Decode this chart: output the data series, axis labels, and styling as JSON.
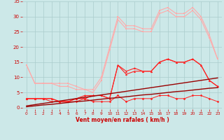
{
  "x": [
    0,
    1,
    2,
    3,
    4,
    5,
    6,
    7,
    8,
    9,
    10,
    11,
    12,
    13,
    14,
    15,
    16,
    17,
    18,
    19,
    20,
    21,
    22,
    23
  ],
  "light_max_y": [
    14,
    8,
    8,
    8,
    8,
    8,
    7,
    6,
    6,
    10,
    20,
    30,
    27,
    27,
    26,
    26,
    32,
    33,
    31,
    31,
    33,
    30,
    24,
    16
  ],
  "light_avg_y": [
    14,
    8,
    8,
    8,
    7,
    7,
    6,
    6,
    5,
    9,
    19,
    29,
    26,
    26,
    25,
    25,
    31,
    32,
    30,
    30,
    32,
    29,
    23,
    16
  ],
  "dark_max_y": [
    3,
    3,
    3,
    3,
    2,
    2,
    3,
    4,
    4,
    4,
    3,
    14,
    12,
    13,
    12,
    12,
    15,
    16,
    15,
    15,
    16,
    14,
    9,
    7
  ],
  "dark_avg_y": [
    3,
    3,
    3,
    3,
    2,
    2,
    3,
    3,
    4,
    4,
    3,
    14,
    11,
    12,
    12,
    12,
    15,
    16,
    15,
    15,
    16,
    14,
    9,
    7
  ],
  "dark_min_y": [
    3,
    3,
    3,
    2,
    2,
    2,
    2,
    3,
    2,
    2,
    2,
    4,
    2,
    3,
    3,
    3,
    4,
    4,
    3,
    3,
    4,
    4,
    3,
    2
  ],
  "trend1_y": [
    0.6,
    1.0,
    1.4,
    1.8,
    2.2,
    2.6,
    3.0,
    3.4,
    3.8,
    4.2,
    4.6,
    5.0,
    5.4,
    5.8,
    6.2,
    6.6,
    7.0,
    7.4,
    7.8,
    8.2,
    8.6,
    9.0,
    9.4,
    9.8
  ],
  "trend2_y": [
    0.3,
    0.6,
    0.9,
    1.1,
    1.4,
    1.7,
    2.0,
    2.2,
    2.5,
    2.8,
    3.1,
    3.3,
    3.6,
    3.9,
    4.2,
    4.4,
    4.7,
    5.0,
    5.3,
    5.5,
    5.8,
    6.1,
    6.4,
    6.6
  ],
  "wind_symbols": [
    "↘",
    "↓",
    "↘",
    "↘",
    "↘",
    "↘",
    "↘",
    "↘",
    "↘",
    "←",
    "↓",
    "↘",
    "↘",
    "↓",
    "↘",
    "↖",
    "↗",
    "↖",
    "↖",
    "↖",
    "↖",
    "↖",
    "↓",
    "↖"
  ],
  "bg_color": "#cce8e8",
  "grid_color": "#aacccc",
  "light_color": "#ffaaaa",
  "dark_color": "#ff2222",
  "trend_color": "#990000",
  "tick_color": "#cc0000",
  "xlabel": "Vent moyen/en rafales ( km/h )",
  "xlim_min": -0.5,
  "xlim_max": 23.5,
  "ylim_min": 0,
  "ylim_max": 35,
  "yticks": [
    0,
    5,
    10,
    15,
    20,
    25,
    30,
    35
  ],
  "xticks": [
    0,
    1,
    2,
    3,
    4,
    5,
    6,
    7,
    8,
    9,
    10,
    11,
    12,
    13,
    14,
    15,
    16,
    17,
    18,
    19,
    20,
    21,
    22,
    23
  ]
}
